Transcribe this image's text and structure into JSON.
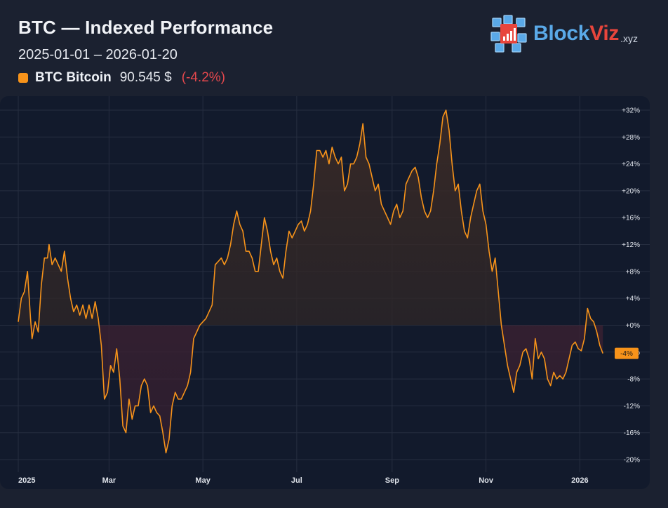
{
  "header": {
    "title": "BTC — Indexed Performance",
    "date_range": "2025-01-01 – 2026-01-20",
    "legend": {
      "name": "BTC Bitcoin",
      "price": "90.545 $",
      "change": "(-4.2%)"
    }
  },
  "brand": {
    "name_part1": "Block",
    "name_part2": "Viz",
    "tld": ".xyz"
  },
  "colors": {
    "line": "#f7931a",
    "negative": "#e5484d",
    "panel": "#121a2c",
    "background": "#1b2130"
  },
  "chart_data": {
    "type": "area",
    "title": "BTC — Indexed Performance",
    "series": [
      {
        "name": "BTC Bitcoin",
        "unit": "%"
      }
    ],
    "x_range": [
      "2025-01-01",
      "2026-01-20"
    ],
    "ylim": [
      -20,
      32
    ],
    "y_ticks": [
      32,
      28,
      24,
      20,
      16,
      12,
      8,
      4,
      0,
      -4,
      -8,
      -12,
      -16,
      -20
    ],
    "y_tick_labels": [
      "+32%",
      "+28%",
      "+24%",
      "+20%",
      "+16%",
      "+12%",
      "+8%",
      "+4%",
      "+0%",
      "-4%",
      "-8%",
      "-12%",
      "-16%",
      "-20%"
    ],
    "x_ticks": [
      "2025-01-01",
      "2025-03-01",
      "2025-05-01",
      "2025-07-01",
      "2025-09-01",
      "2025-11-01",
      "2026-01-01"
    ],
    "x_tick_labels": [
      "2025",
      "Mar",
      "May",
      "Jul",
      "Sep",
      "Nov",
      "2026"
    ],
    "last_value_label": "-4%",
    "grid": true,
    "points": [
      [
        "2025-01-01",
        0.5
      ],
      [
        "2025-01-03",
        4
      ],
      [
        "2025-01-05",
        5
      ],
      [
        "2025-01-07",
        8
      ],
      [
        "2025-01-09",
        1
      ],
      [
        "2025-01-10",
        -2
      ],
      [
        "2025-01-12",
        0.5
      ],
      [
        "2025-01-14",
        -1
      ],
      [
        "2025-01-16",
        6
      ],
      [
        "2025-01-18",
        10
      ],
      [
        "2025-01-20",
        10
      ],
      [
        "2025-01-21",
        12
      ],
      [
        "2025-01-23",
        9
      ],
      [
        "2025-01-25",
        10
      ],
      [
        "2025-01-27",
        9
      ],
      [
        "2025-01-29",
        8
      ],
      [
        "2025-01-31",
        11
      ],
      [
        "2025-02-02",
        7
      ],
      [
        "2025-02-04",
        4
      ],
      [
        "2025-02-06",
        2
      ],
      [
        "2025-02-08",
        3
      ],
      [
        "2025-02-10",
        1.5
      ],
      [
        "2025-02-12",
        3
      ],
      [
        "2025-02-14",
        1
      ],
      [
        "2025-02-16",
        3
      ],
      [
        "2025-02-18",
        1
      ],
      [
        "2025-02-20",
        3.5
      ],
      [
        "2025-02-22",
        1
      ],
      [
        "2025-02-24",
        -3
      ],
      [
        "2025-02-26",
        -11
      ],
      [
        "2025-02-28",
        -10
      ],
      [
        "2025-03-02",
        -6
      ],
      [
        "2025-03-04",
        -7
      ],
      [
        "2025-03-06",
        -3.5
      ],
      [
        "2025-03-08",
        -8
      ],
      [
        "2025-03-10",
        -15
      ],
      [
        "2025-03-12",
        -16
      ],
      [
        "2025-03-14",
        -11
      ],
      [
        "2025-03-16",
        -14
      ],
      [
        "2025-03-18",
        -12
      ],
      [
        "2025-03-20",
        -12
      ],
      [
        "2025-03-22",
        -9
      ],
      [
        "2025-03-24",
        -8
      ],
      [
        "2025-03-26",
        -9
      ],
      [
        "2025-03-28",
        -13
      ],
      [
        "2025-03-30",
        -12
      ],
      [
        "2025-04-01",
        -13
      ],
      [
        "2025-04-03",
        -13.5
      ],
      [
        "2025-04-05",
        -16
      ],
      [
        "2025-04-07",
        -19
      ],
      [
        "2025-04-09",
        -17
      ],
      [
        "2025-04-11",
        -12
      ],
      [
        "2025-04-13",
        -10
      ],
      [
        "2025-04-15",
        -11
      ],
      [
        "2025-04-17",
        -11
      ],
      [
        "2025-04-19",
        -10
      ],
      [
        "2025-04-21",
        -9
      ],
      [
        "2025-04-23",
        -7
      ],
      [
        "2025-04-25",
        -2
      ],
      [
        "2025-04-27",
        -1
      ],
      [
        "2025-04-29",
        0
      ],
      [
        "2025-05-01",
        0.5
      ],
      [
        "2025-05-03",
        1
      ],
      [
        "2025-05-05",
        2
      ],
      [
        "2025-05-07",
        3
      ],
      [
        "2025-05-09",
        9
      ],
      [
        "2025-05-11",
        9.5
      ],
      [
        "2025-05-13",
        10
      ],
      [
        "2025-05-15",
        9
      ],
      [
        "2025-05-17",
        10
      ],
      [
        "2025-05-19",
        12
      ],
      [
        "2025-05-21",
        15
      ],
      [
        "2025-05-23",
        17
      ],
      [
        "2025-05-25",
        15
      ],
      [
        "2025-05-27",
        14
      ],
      [
        "2025-05-29",
        11
      ],
      [
        "2025-05-31",
        11
      ],
      [
        "2025-06-02",
        10
      ],
      [
        "2025-06-04",
        8
      ],
      [
        "2025-06-06",
        8
      ],
      [
        "2025-06-08",
        12
      ],
      [
        "2025-06-10",
        16
      ],
      [
        "2025-06-12",
        14
      ],
      [
        "2025-06-14",
        11
      ],
      [
        "2025-06-16",
        9
      ],
      [
        "2025-06-18",
        10
      ],
      [
        "2025-06-20",
        8
      ],
      [
        "2025-06-22",
        7
      ],
      [
        "2025-06-24",
        11
      ],
      [
        "2025-06-26",
        14
      ],
      [
        "2025-06-28",
        13
      ],
      [
        "2025-06-30",
        14
      ],
      [
        "2025-07-02",
        15
      ],
      [
        "2025-07-04",
        15.5
      ],
      [
        "2025-07-06",
        14
      ],
      [
        "2025-07-08",
        15
      ],
      [
        "2025-07-10",
        17
      ],
      [
        "2025-07-12",
        21
      ],
      [
        "2025-07-14",
        26
      ],
      [
        "2025-07-16",
        26
      ],
      [
        "2025-07-18",
        25
      ],
      [
        "2025-07-20",
        26
      ],
      [
        "2025-07-22",
        24
      ],
      [
        "2025-07-24",
        26.5
      ],
      [
        "2025-07-26",
        25
      ],
      [
        "2025-07-28",
        24
      ],
      [
        "2025-07-30",
        25
      ],
      [
        "2025-08-01",
        20
      ],
      [
        "2025-08-03",
        21
      ],
      [
        "2025-08-05",
        24
      ],
      [
        "2025-08-07",
        24
      ],
      [
        "2025-08-09",
        25
      ],
      [
        "2025-08-11",
        27
      ],
      [
        "2025-08-13",
        30
      ],
      [
        "2025-08-15",
        25
      ],
      [
        "2025-08-17",
        24
      ],
      [
        "2025-08-19",
        22
      ],
      [
        "2025-08-21",
        20
      ],
      [
        "2025-08-23",
        21
      ],
      [
        "2025-08-25",
        18
      ],
      [
        "2025-08-27",
        17
      ],
      [
        "2025-08-29",
        16
      ],
      [
        "2025-08-31",
        15
      ],
      [
        "2025-09-02",
        17
      ],
      [
        "2025-09-04",
        18
      ],
      [
        "2025-09-06",
        16
      ],
      [
        "2025-09-08",
        17
      ],
      [
        "2025-09-10",
        21
      ],
      [
        "2025-09-12",
        22
      ],
      [
        "2025-09-14",
        23
      ],
      [
        "2025-09-16",
        23.5
      ],
      [
        "2025-09-18",
        22
      ],
      [
        "2025-09-20",
        19
      ],
      [
        "2025-09-22",
        17
      ],
      [
        "2025-09-24",
        16
      ],
      [
        "2025-09-26",
        17
      ],
      [
        "2025-09-28",
        20
      ],
      [
        "2025-09-30",
        24
      ],
      [
        "2025-10-02",
        27
      ],
      [
        "2025-10-04",
        31
      ],
      [
        "2025-10-06",
        32
      ],
      [
        "2025-10-08",
        29
      ],
      [
        "2025-10-10",
        24
      ],
      [
        "2025-10-12",
        20
      ],
      [
        "2025-10-14",
        21
      ],
      [
        "2025-10-16",
        17
      ],
      [
        "2025-10-18",
        14
      ],
      [
        "2025-10-20",
        13
      ],
      [
        "2025-10-22",
        16
      ],
      [
        "2025-10-24",
        18
      ],
      [
        "2025-10-26",
        20
      ],
      [
        "2025-10-28",
        21
      ],
      [
        "2025-10-30",
        17
      ],
      [
        "2025-11-01",
        15
      ],
      [
        "2025-11-03",
        11
      ],
      [
        "2025-11-05",
        8
      ],
      [
        "2025-11-07",
        10
      ],
      [
        "2025-11-09",
        5
      ],
      [
        "2025-11-11",
        0
      ],
      [
        "2025-11-13",
        -3
      ],
      [
        "2025-11-15",
        -6
      ],
      [
        "2025-11-17",
        -8
      ],
      [
        "2025-11-19",
        -10
      ],
      [
        "2025-11-21",
        -7
      ],
      [
        "2025-11-23",
        -6
      ],
      [
        "2025-11-25",
        -4
      ],
      [
        "2025-11-27",
        -3.5
      ],
      [
        "2025-11-29",
        -5
      ],
      [
        "2025-12-01",
        -8
      ],
      [
        "2025-12-03",
        -2
      ],
      [
        "2025-12-05",
        -5
      ],
      [
        "2025-12-07",
        -4
      ],
      [
        "2025-12-09",
        -5
      ],
      [
        "2025-12-11",
        -8
      ],
      [
        "2025-12-13",
        -9
      ],
      [
        "2025-12-15",
        -7
      ],
      [
        "2025-12-17",
        -8
      ],
      [
        "2025-12-19",
        -7.5
      ],
      [
        "2025-12-21",
        -8
      ],
      [
        "2025-12-23",
        -7
      ],
      [
        "2025-12-25",
        -5
      ],
      [
        "2025-12-27",
        -3
      ],
      [
        "2025-12-29",
        -2.5
      ],
      [
        "2025-12-31",
        -3.5
      ],
      [
        "2026-01-02",
        -3.8
      ],
      [
        "2026-01-04",
        -2
      ],
      [
        "2026-01-06",
        2.5
      ],
      [
        "2026-01-08",
        1
      ],
      [
        "2026-01-10",
        0.5
      ],
      [
        "2026-01-12",
        -1
      ],
      [
        "2026-01-14",
        -3
      ],
      [
        "2026-01-16",
        -4.2
      ]
    ]
  }
}
